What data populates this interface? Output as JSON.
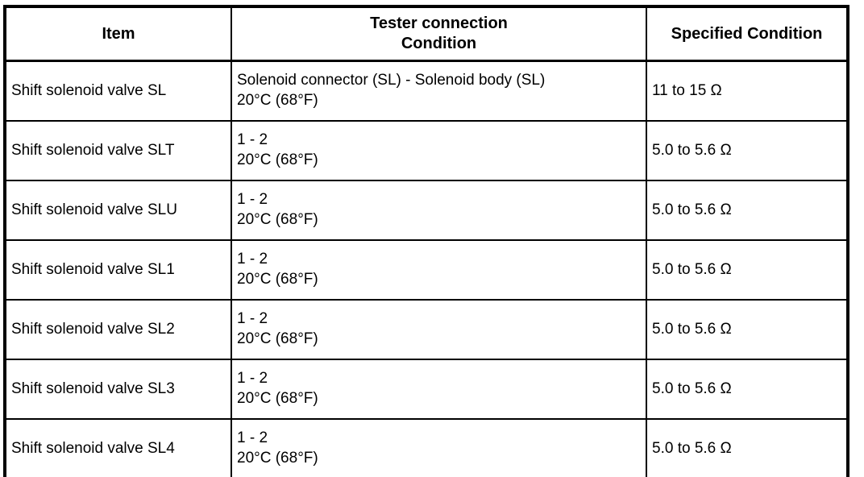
{
  "table": {
    "headers": {
      "item": "Item",
      "tester_line1": "Tester connection",
      "tester_line2": "Condition",
      "specified": "Specified Condition"
    },
    "rows": [
      {
        "item": "Shift solenoid valve SL",
        "connection": "Solenoid connector (SL) - Solenoid body (SL)",
        "condition": "20°C (68°F)",
        "specified": "11 to 15 Ω"
      },
      {
        "item": "Shift solenoid valve SLT",
        "connection": "1 - 2",
        "condition": "20°C (68°F)",
        "specified": "5.0 to 5.6 Ω"
      },
      {
        "item": "Shift solenoid valve SLU",
        "connection": "1 - 2",
        "condition": "20°C (68°F)",
        "specified": "5.0 to 5.6 Ω"
      },
      {
        "item": "Shift solenoid valve SL1",
        "connection": "1 - 2",
        "condition": "20°C (68°F)",
        "specified": "5.0 to 5.6 Ω"
      },
      {
        "item": "Shift solenoid valve SL2",
        "connection": "1 - 2",
        "condition": "20°C (68°F)",
        "specified": "5.0 to 5.6 Ω"
      },
      {
        "item": "Shift solenoid valve SL3",
        "connection": "1 - 2",
        "condition": "20°C (68°F)",
        "specified": "5.0 to 5.6 Ω"
      },
      {
        "item": "Shift solenoid valve SL4",
        "connection": "1 - 2",
        "condition": "20°C (68°F)",
        "specified": "5.0 to 5.6 Ω"
      }
    ]
  },
  "colors": {
    "border": "#000000",
    "background": "#ffffff",
    "text": "#000000"
  }
}
